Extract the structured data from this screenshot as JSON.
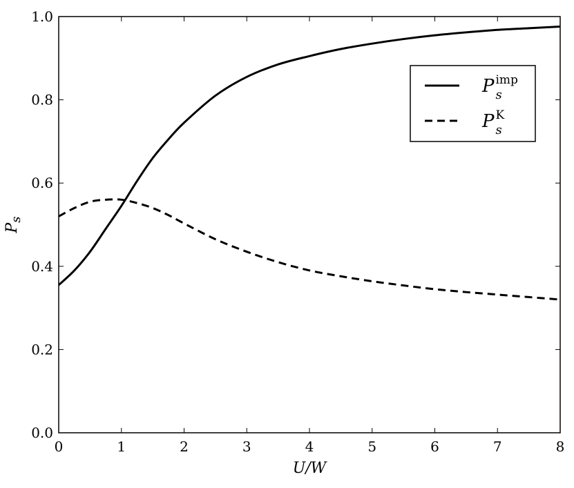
{
  "chart_data": {
    "type": "line",
    "xlabel": "U/W",
    "ylabel": "P",
    "ylabel_sub": "s",
    "xlim": [
      0,
      8
    ],
    "ylim": [
      0.0,
      1.0
    ],
    "xticks": [
      "0",
      "1",
      "2",
      "3",
      "4",
      "5",
      "6",
      "7",
      "8"
    ],
    "yticks": [
      "0.0",
      "0.2",
      "0.4",
      "0.6",
      "0.8",
      "1.0"
    ],
    "grid": false,
    "legend_position": "top-right",
    "series": [
      {
        "name": "P",
        "name_sub": "s",
        "name_sup": "imp",
        "style": "solid",
        "color": "#000000",
        "x": [
          0,
          0.25,
          0.5,
          0.75,
          1.0,
          1.25,
          1.5,
          1.75,
          2.0,
          2.5,
          3.0,
          3.5,
          4.0,
          4.5,
          5.0,
          5.5,
          6.0,
          6.5,
          7.0,
          7.5,
          8.0
        ],
        "y": [
          0.355,
          0.39,
          0.435,
          0.49,
          0.545,
          0.605,
          0.66,
          0.705,
          0.745,
          0.81,
          0.855,
          0.885,
          0.905,
          0.922,
          0.935,
          0.946,
          0.955,
          0.962,
          0.968,
          0.972,
          0.976
        ]
      },
      {
        "name": "P",
        "name_sub": "s",
        "name_sup": "K",
        "style": "dashed",
        "color": "#000000",
        "x": [
          0,
          0.25,
          0.5,
          0.75,
          1.0,
          1.25,
          1.5,
          1.75,
          2.0,
          2.5,
          3.0,
          3.5,
          4.0,
          4.5,
          5.0,
          5.5,
          6.0,
          6.5,
          7.0,
          7.5,
          8.0
        ],
        "y": [
          0.52,
          0.54,
          0.555,
          0.56,
          0.56,
          0.552,
          0.54,
          0.523,
          0.503,
          0.465,
          0.435,
          0.41,
          0.39,
          0.376,
          0.364,
          0.354,
          0.345,
          0.338,
          0.332,
          0.326,
          0.32
        ]
      }
    ]
  }
}
